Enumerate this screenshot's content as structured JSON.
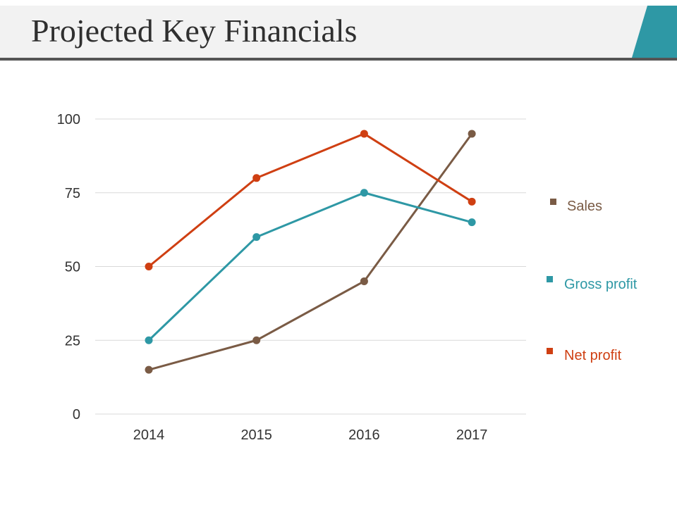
{
  "slide": {
    "title": "Projected Key Financials"
  },
  "colors": {
    "title_bar": "#f2f2f2",
    "accent": "#2e98a5",
    "rule": "#555555",
    "grid": "#d9d9d9"
  },
  "chart_data": {
    "type": "line",
    "title": "",
    "xlabel": "",
    "ylabel": "",
    "categories": [
      "2014",
      "2015",
      "2016",
      "2017"
    ],
    "ylim": [
      0,
      100
    ],
    "yticks": [
      "0",
      "25",
      "50",
      "75",
      "100"
    ],
    "grid": true,
    "legend_position": "right",
    "series": [
      {
        "name": "Sales",
        "color": "#7a5b45",
        "values": [
          15,
          25,
          45,
          95
        ]
      },
      {
        "name": "Gross profit",
        "color": "#2e98a5",
        "values": [
          25,
          60,
          75,
          65
        ]
      },
      {
        "name": "Net profit",
        "color": "#cf3f12",
        "values": [
          50,
          80,
          95,
          72
        ]
      }
    ]
  }
}
